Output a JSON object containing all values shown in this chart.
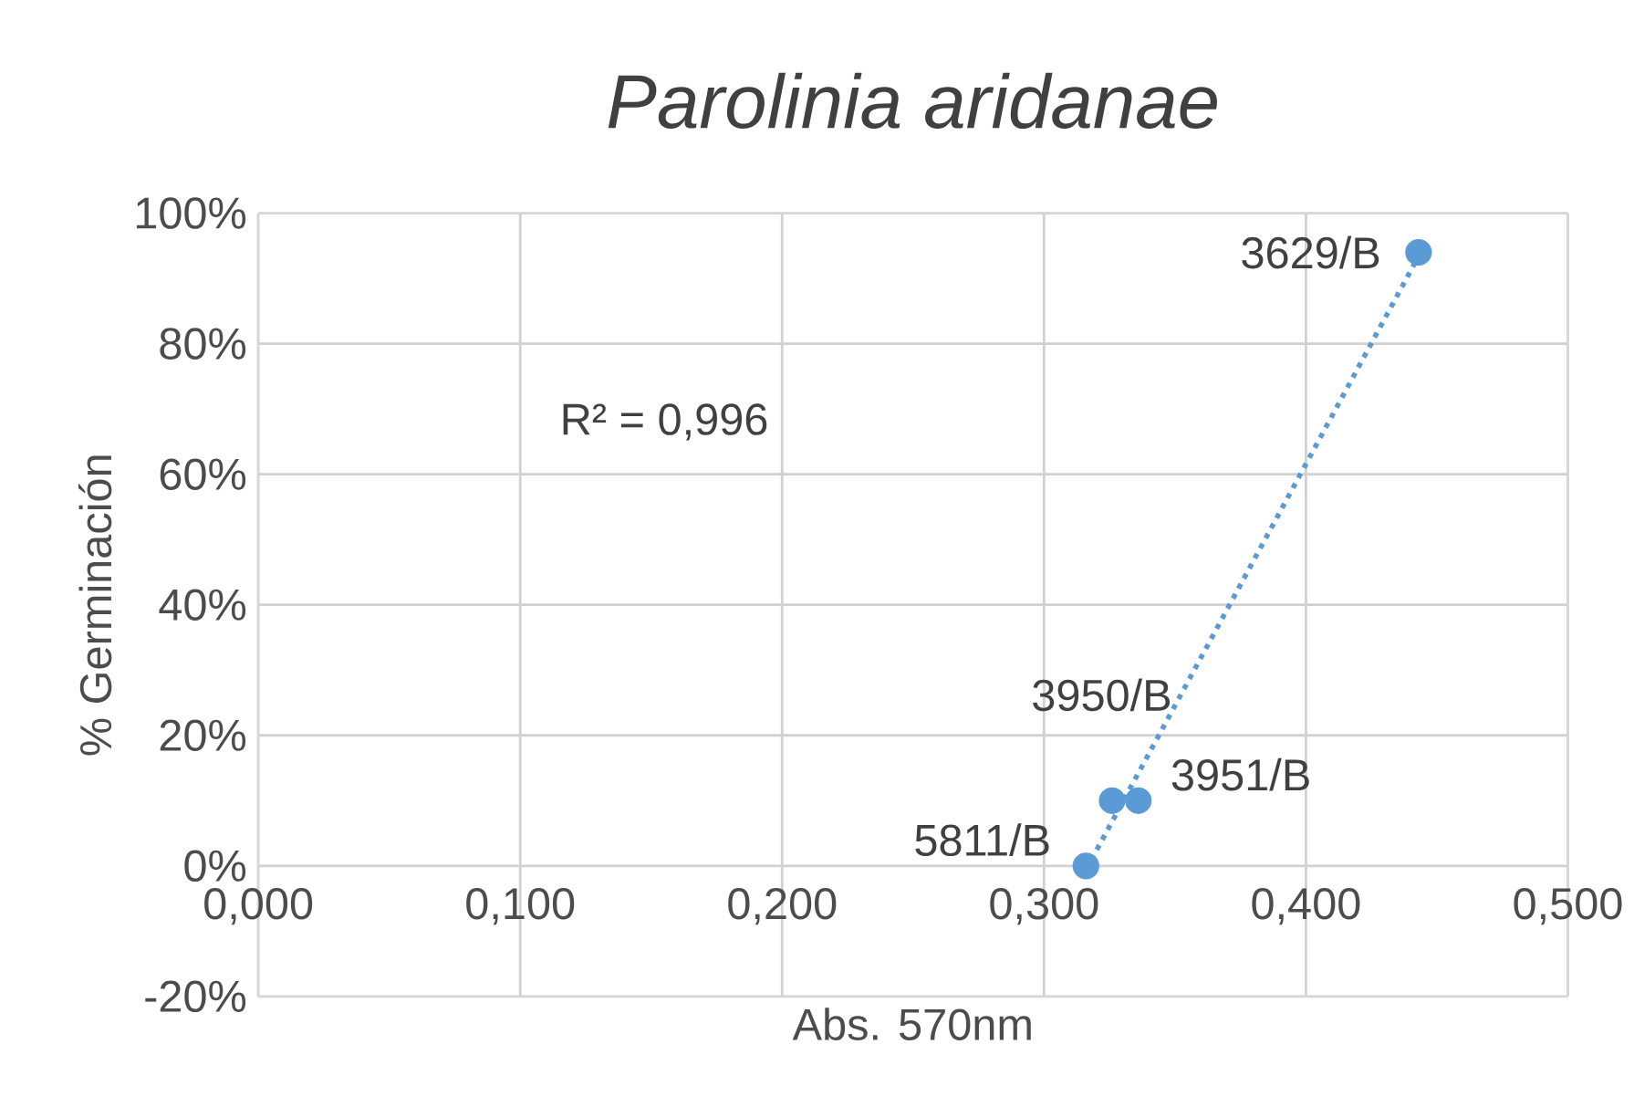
{
  "chart_data": {
    "type": "scatter",
    "title": "Parolinia aridanae",
    "xlabel": "Abs. 570nm",
    "ylabel": "% Germinación",
    "series": [
      {
        "color": "#5b9bd5",
        "marker": "circle",
        "x": [
          0.316,
          0.326,
          0.336,
          0.443
        ],
        "values": [
          0,
          10,
          10,
          94
        ]
      },
      {
        "type": "line",
        "color": "#5b9bd5",
        "marker": "none",
        "line_style": "dotted",
        "x": [
          0.316,
          0.443
        ],
        "values": [
          -0.6,
          93.4
        ]
      }
    ],
    "xlim": [
      0,
      0.5
    ],
    "ylim": [
      -20,
      100
    ],
    "xticks": [
      {
        "value": 0,
        "label": "0,000"
      },
      {
        "value": 0.1,
        "label": "0,100"
      },
      {
        "value": 0.2,
        "label": "0,200"
      },
      {
        "value": 0.3,
        "label": "0,300"
      },
      {
        "value": 0.4,
        "label": "0,400"
      },
      {
        "value": 0.5,
        "label": "0,500"
      }
    ],
    "yticks": [
      {
        "value": -20,
        "label": "-20%"
      },
      {
        "value": 0,
        "label": "0%"
      },
      {
        "value": 20,
        "label": "20%"
      },
      {
        "value": 40,
        "label": "40%"
      },
      {
        "value": 60,
        "label": "60%"
      },
      {
        "value": 80,
        "label": "80%"
      },
      {
        "value": 100,
        "label": "100%"
      }
    ],
    "grid": true,
    "annotations": [
      {
        "text": "3629/B",
        "x": 0.443,
        "y": 94
      },
      {
        "text": "3950/B",
        "x": 0.326,
        "y": 10
      },
      {
        "text": "3951/B",
        "x": 0.336,
        "y": 10
      },
      {
        "text": "5811/B",
        "x": 0.316,
        "y": 0
      },
      "R² = 0,996"
    ]
  }
}
